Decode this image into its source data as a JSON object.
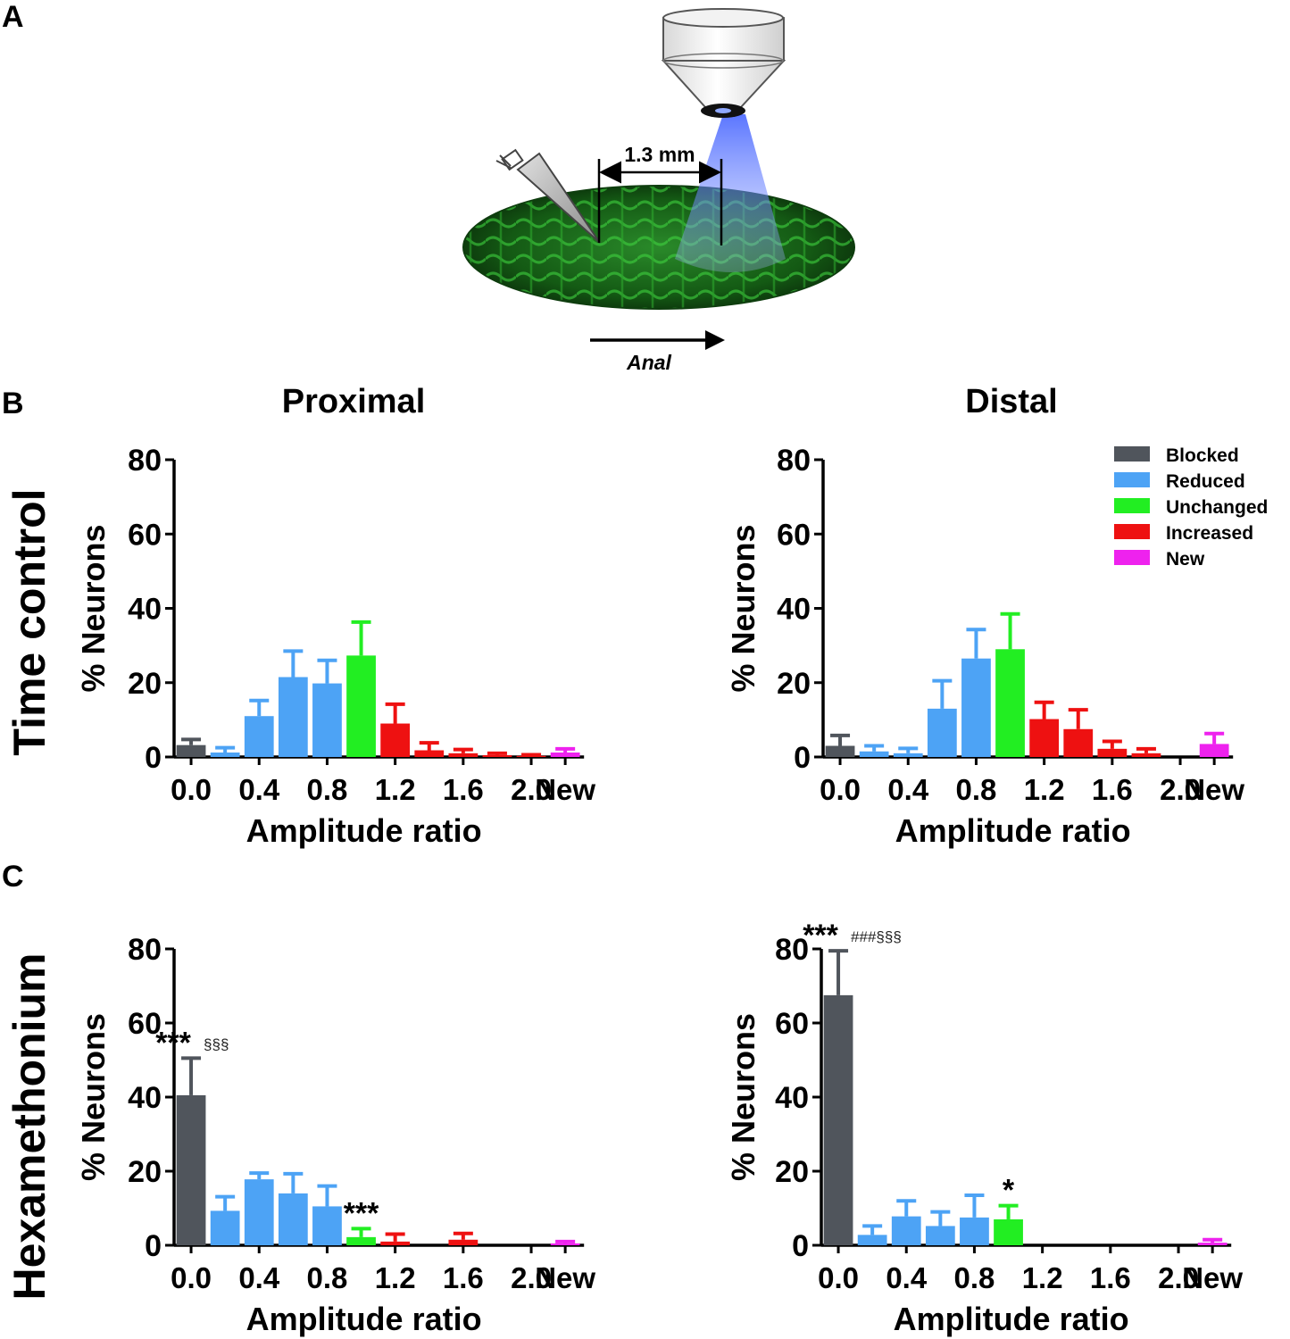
{
  "panel_labels": {
    "A": "A",
    "B": "B",
    "C": "C"
  },
  "schematic": {
    "distance_label": "1.3 mm",
    "direction_label": "Anal"
  },
  "column_titles": {
    "proximal": "Proximal",
    "distal": "Distal"
  },
  "row_titles": {
    "time_control": "Time control",
    "hexamethonium": "Hexamethonium"
  },
  "legend": [
    {
      "label": "Blocked",
      "color": "#50555c"
    },
    {
      "label": "Reduced",
      "color": "#4da3f5"
    },
    {
      "label": "Unchanged",
      "color": "#22ee22"
    },
    {
      "label": "Increased",
      "color": "#ee1111"
    },
    {
      "label": "New",
      "color": "#ee22ee"
    }
  ],
  "chart_data": [
    {
      "id": "time_control_proximal",
      "type": "bar",
      "title": "Proximal",
      "xlabel": "Amplitude ratio",
      "ylabel": "% Neurons",
      "ylim": [
        0,
        80
      ],
      "yticks": [
        "0",
        "20",
        "40",
        "60",
        "80"
      ],
      "xticks": [
        "0.0",
        "0.4",
        "0.8",
        "1.2",
        "1.6",
        "2.0",
        "New"
      ],
      "bins": [
        0.0,
        0.2,
        0.4,
        0.6,
        0.8,
        1.0,
        1.2,
        1.4,
        1.6,
        1.8,
        2.0,
        "New"
      ],
      "values": [
        3.2,
        1.2,
        11,
        21.5,
        19.8,
        27.3,
        9,
        1.8,
        1,
        0.5,
        0.3,
        1.2
      ],
      "errors": [
        1.5,
        1.3,
        4.2,
        7,
        6.2,
        9,
        5.2,
        2,
        1,
        0.5,
        0.3,
        1
      ],
      "categories": [
        "Blocked",
        "Reduced",
        "Reduced",
        "Reduced",
        "Reduced",
        "Unchanged",
        "Increased",
        "Increased",
        "Increased",
        "Increased",
        "Increased",
        "New"
      ],
      "annotations": []
    },
    {
      "id": "time_control_distal",
      "type": "bar",
      "title": "Distal",
      "xlabel": "Amplitude ratio",
      "ylabel": "% Neurons",
      "ylim": [
        0,
        80
      ],
      "yticks": [
        "0",
        "20",
        "40",
        "60",
        "80"
      ],
      "xticks": [
        "0.0",
        "0.4",
        "0.8",
        "1.2",
        "1.6",
        "2.0",
        "New"
      ],
      "bins": [
        0.0,
        0.2,
        0.4,
        0.6,
        0.8,
        1.0,
        1.2,
        1.4,
        1.6,
        1.8,
        2.0,
        "New"
      ],
      "values": [
        3,
        1.5,
        1,
        13,
        26.5,
        29,
        10.2,
        7.5,
        2.2,
        1,
        0,
        3.5
      ],
      "errors": [
        2.8,
        1.5,
        1.3,
        7.5,
        7.8,
        9.5,
        4.5,
        5.2,
        2,
        1.2,
        0,
        2.8
      ],
      "categories": [
        "Blocked",
        "Reduced",
        "Reduced",
        "Reduced",
        "Reduced",
        "Unchanged",
        "Increased",
        "Increased",
        "Increased",
        "Increased",
        "Increased",
        "New"
      ],
      "annotations": []
    },
    {
      "id": "hexamethonium_proximal",
      "type": "bar",
      "title": "",
      "xlabel": "Amplitude ratio",
      "ylabel": "% Neurons",
      "ylim": [
        0,
        80
      ],
      "yticks": [
        "0",
        "20",
        "40",
        "60",
        "80"
      ],
      "xticks": [
        "0.0",
        "0.4",
        "0.8",
        "1.2",
        "1.6",
        "2.0",
        "New"
      ],
      "bins": [
        0.0,
        0.2,
        0.4,
        0.6,
        0.8,
        1.0,
        1.2,
        1.4,
        1.6,
        1.8,
        2.0,
        "New"
      ],
      "values": [
        40.5,
        9.3,
        17.8,
        14,
        10.5,
        2.2,
        1,
        0,
        1.5,
        0,
        0,
        0.5
      ],
      "errors": [
        10,
        3.8,
        1.7,
        5.3,
        5.5,
        2.3,
        2,
        0,
        1.7,
        0,
        0,
        0.5
      ],
      "categories": [
        "Blocked",
        "Reduced",
        "Reduced",
        "Reduced",
        "Reduced",
        "Unchanged",
        "Increased",
        "Increased",
        "Increased",
        "Increased",
        "Increased",
        "New"
      ],
      "annotations": [
        {
          "bin": 0,
          "stars": "***",
          "marks": "§§§"
        },
        {
          "bin": 5,
          "stars": "***",
          "marks": ""
        }
      ]
    },
    {
      "id": "hexamethonium_distal",
      "type": "bar",
      "title": "",
      "xlabel": "Amplitude ratio",
      "ylabel": "% Neurons",
      "ylim": [
        0,
        80
      ],
      "yticks": [
        "0",
        "20",
        "40",
        "60",
        "80"
      ],
      "xticks": [
        "0.0",
        "0.4",
        "0.8",
        "1.2",
        "1.6",
        "2.0",
        "New"
      ],
      "bins": [
        0.0,
        0.2,
        0.4,
        0.6,
        0.8,
        1.0,
        1.2,
        1.4,
        1.6,
        1.8,
        2.0,
        "New"
      ],
      "values": [
        67.5,
        2.8,
        7.8,
        5.2,
        7.5,
        7,
        0,
        0,
        0,
        0,
        0,
        0.7
      ],
      "errors": [
        12,
        2.4,
        4.2,
        3.8,
        6,
        3.7,
        0,
        0,
        0,
        0,
        0,
        0.8
      ],
      "categories": [
        "Blocked",
        "Reduced",
        "Reduced",
        "Reduced",
        "Reduced",
        "Unchanged",
        "Increased",
        "Increased",
        "Increased",
        "Increased",
        "Increased",
        "New"
      ],
      "annotations": [
        {
          "bin": 0,
          "stars": "***",
          "marks": "###§§§"
        },
        {
          "bin": 5,
          "stars": "*",
          "marks": ""
        }
      ]
    }
  ]
}
